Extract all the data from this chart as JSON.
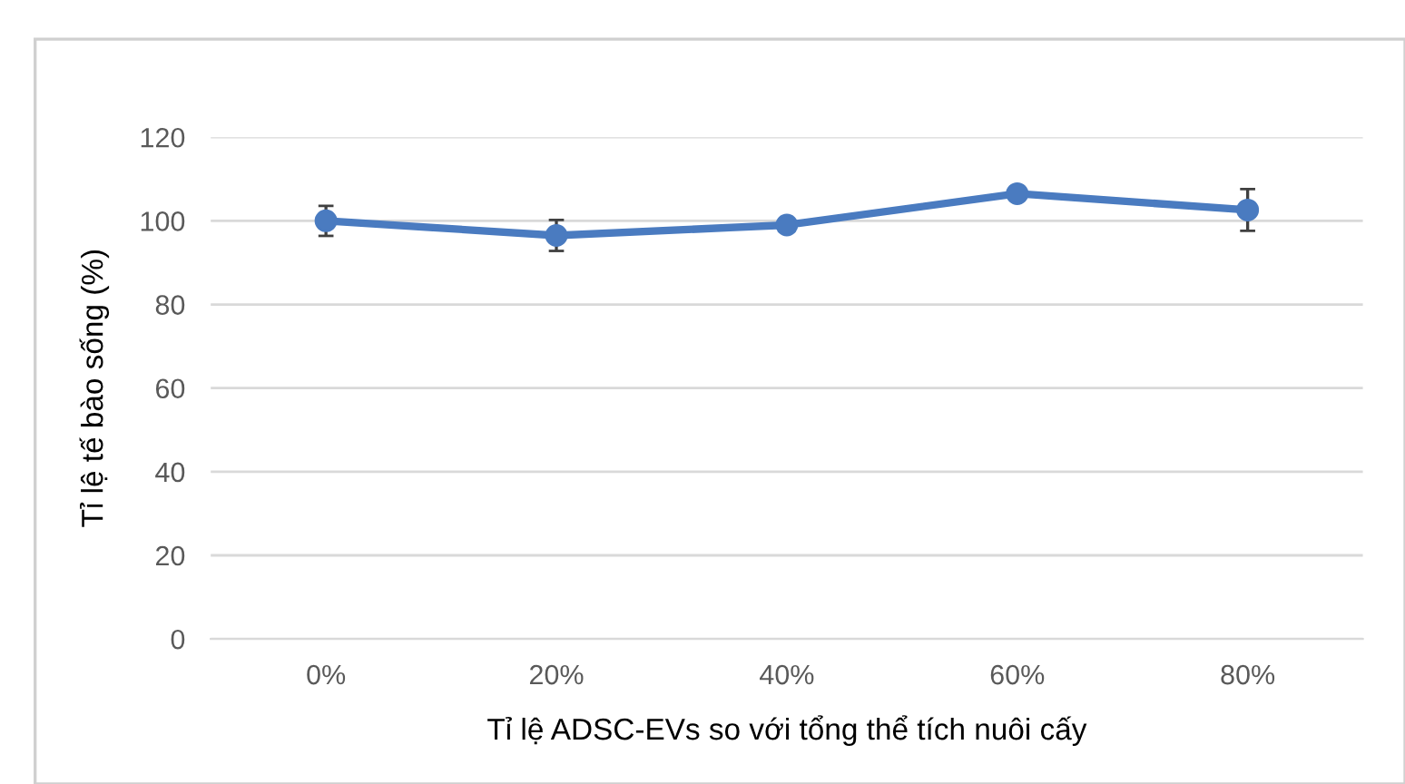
{
  "chart_data": {
    "type": "line",
    "xlabel": "Tỉ lệ ADSC-EVs so với tổng thể tích nuôi cấy",
    "ylabel": "Tỉ lệ tế bào sống (%)",
    "categories": [
      "0%",
      "20%",
      "40%",
      "60%",
      "80%"
    ],
    "series": [
      {
        "color": "#4a7bc0",
        "values": [
          100,
          96.5,
          99,
          106.5,
          102.6
        ],
        "errors": [
          3.6,
          3.7,
          null,
          null,
          5
        ]
      }
    ],
    "ylim": [
      0,
      120
    ],
    "yticks": [
      0,
      20,
      40,
      60,
      80,
      100,
      120
    ],
    "grid": "y",
    "marker": "circle",
    "line_style": "solid"
  }
}
